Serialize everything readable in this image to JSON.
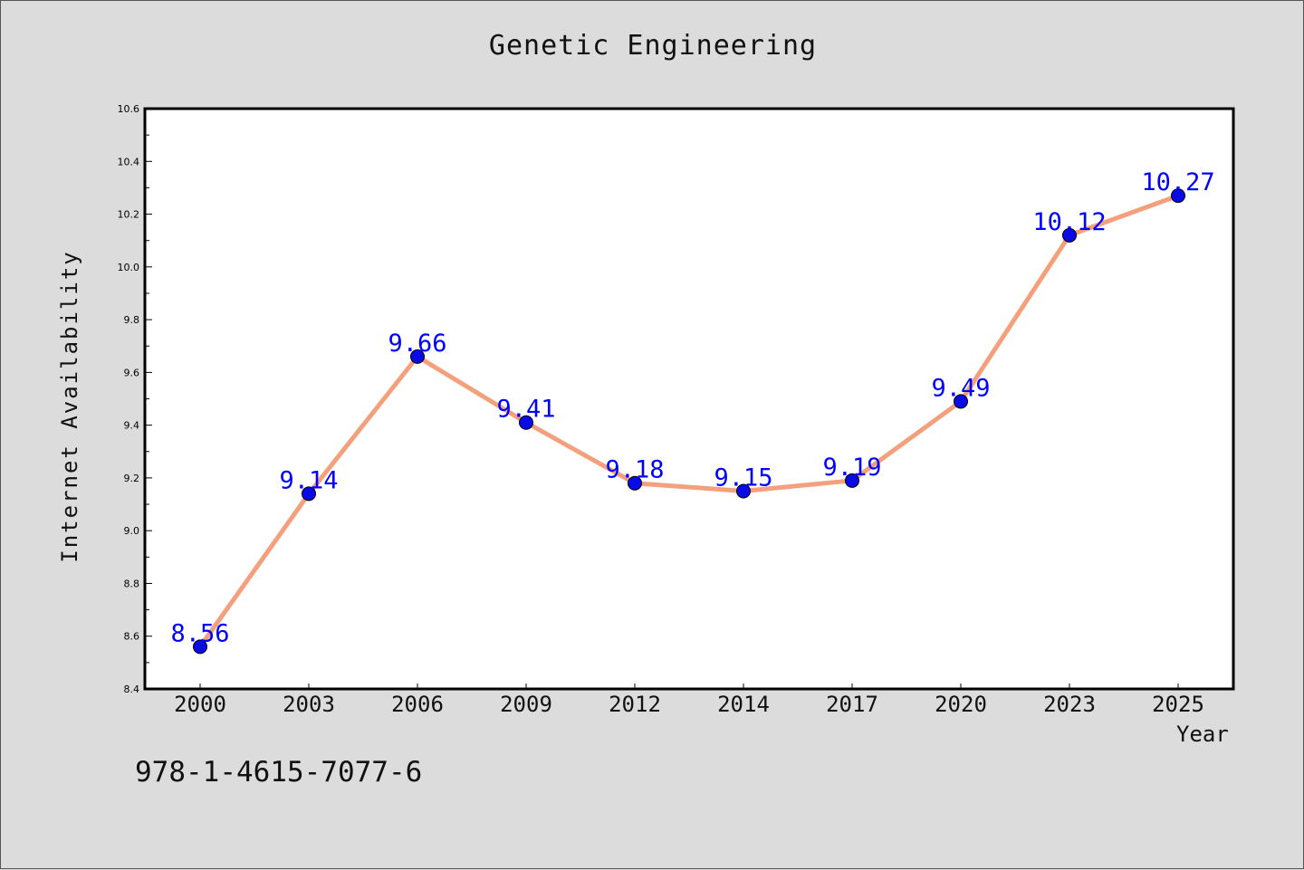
{
  "chart_data": {
    "type": "line",
    "title": "Genetic Engineering",
    "xlabel": "Year",
    "ylabel": "Internet Availability",
    "categories": [
      "2000",
      "2003",
      "2006",
      "2009",
      "2012",
      "2014",
      "2017",
      "2020",
      "2023",
      "2025"
    ],
    "values": [
      8.56,
      9.14,
      9.66,
      9.41,
      9.18,
      9.15,
      9.19,
      9.49,
      10.12,
      10.27
    ],
    "data_labels": [
      "8.56",
      "9.14",
      "9.66",
      "9.41",
      "9.18",
      "9.15",
      "9.19",
      "9.49",
      "10.12",
      "10.27"
    ],
    "ylim": [
      8.4,
      10.6
    ],
    "yticks": [
      "8.4",
      "8.6",
      "8.8",
      "9.0",
      "9.2",
      "9.4",
      "9.6",
      "9.8",
      "10.0",
      "10.2",
      "10.4",
      "10.6"
    ],
    "grid": false,
    "line_color": "#f4a07c",
    "marker_color": "#0a0ae6",
    "label_color": "#0000ff",
    "background": "#ffffff",
    "figure_background": "#dcdcdc"
  },
  "footer_text": "978-1-4615-7077-6"
}
